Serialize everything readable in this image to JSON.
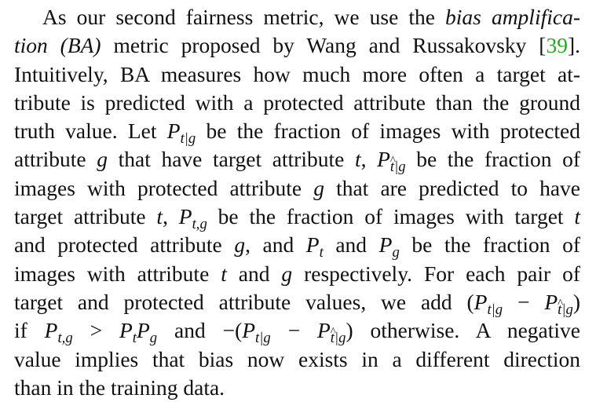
{
  "paragraph": {
    "l1": {
      "a": "As our second fairness metric, we use the ",
      "b": "bias amplifica-"
    },
    "l2": {
      "a": "tion (BA)",
      "b": " metric proposed by Wang and Russakovsky [",
      "cite": "39",
      "c": "]."
    },
    "l3": "Intuitively, BA measures how much more often a target at-",
    "l4": "tribute is predicted with a protected attribute than the ground",
    "l5": {
      "a": "truth value. Let ",
      "m1": "P",
      "m1s": "t|g",
      "b": " be the fraction of images with protected"
    },
    "l6": {
      "a": "attribute ",
      "g": "g",
      "b": " that have target attribute ",
      "t": "t",
      "c": ", ",
      "m": "P",
      "ms1": "t",
      "ms2": "|g",
      "d": " be the fraction of"
    },
    "l7": {
      "a": "images with protected attribute ",
      "g": "g",
      "b": " that are predicted to have"
    },
    "l8": {
      "a": "target attribute ",
      "t": "t",
      "b": ", ",
      "m": "P",
      "ms": "t,g",
      "c": " be the fraction of images with target ",
      "t2": "t"
    },
    "l9": {
      "a": "and protected attribute ",
      "g": "g",
      "b": ", and ",
      "m1": "P",
      "m1s": "t",
      "c": " and ",
      "m2": "P",
      "m2s": "g",
      "d": " be the fraction of"
    },
    "l10": {
      "a": "images with attribute ",
      "t": "t",
      "b": " and ",
      "g": "g",
      "c": " respectively. For each pair of"
    },
    "l11": {
      "a": "target and protected attribute values, we add (",
      "m1": "P",
      "m1s": "t|g",
      "minus": " − ",
      "m2": "P",
      "m2s1": "t",
      "m2s2": "|g",
      "b": ")"
    },
    "l12": {
      "a": "if ",
      "m1": "P",
      "m1s": "t,g",
      "gt": " > ",
      "m2": "P",
      "m2s": "t",
      "m3": "P",
      "m3s": "g",
      "b": " and −(",
      "m4": "P",
      "m4s": "t|g",
      "minus": " − ",
      "m5": "P",
      "m5s1": "t",
      "m5s2": "|g",
      "c": ") otherwise. A negative"
    },
    "l13": "value implies that bias now exists in a different direction",
    "l14": "than in the training data."
  },
  "colors": {
    "text": "#111111",
    "citation": "#22aa22"
  }
}
